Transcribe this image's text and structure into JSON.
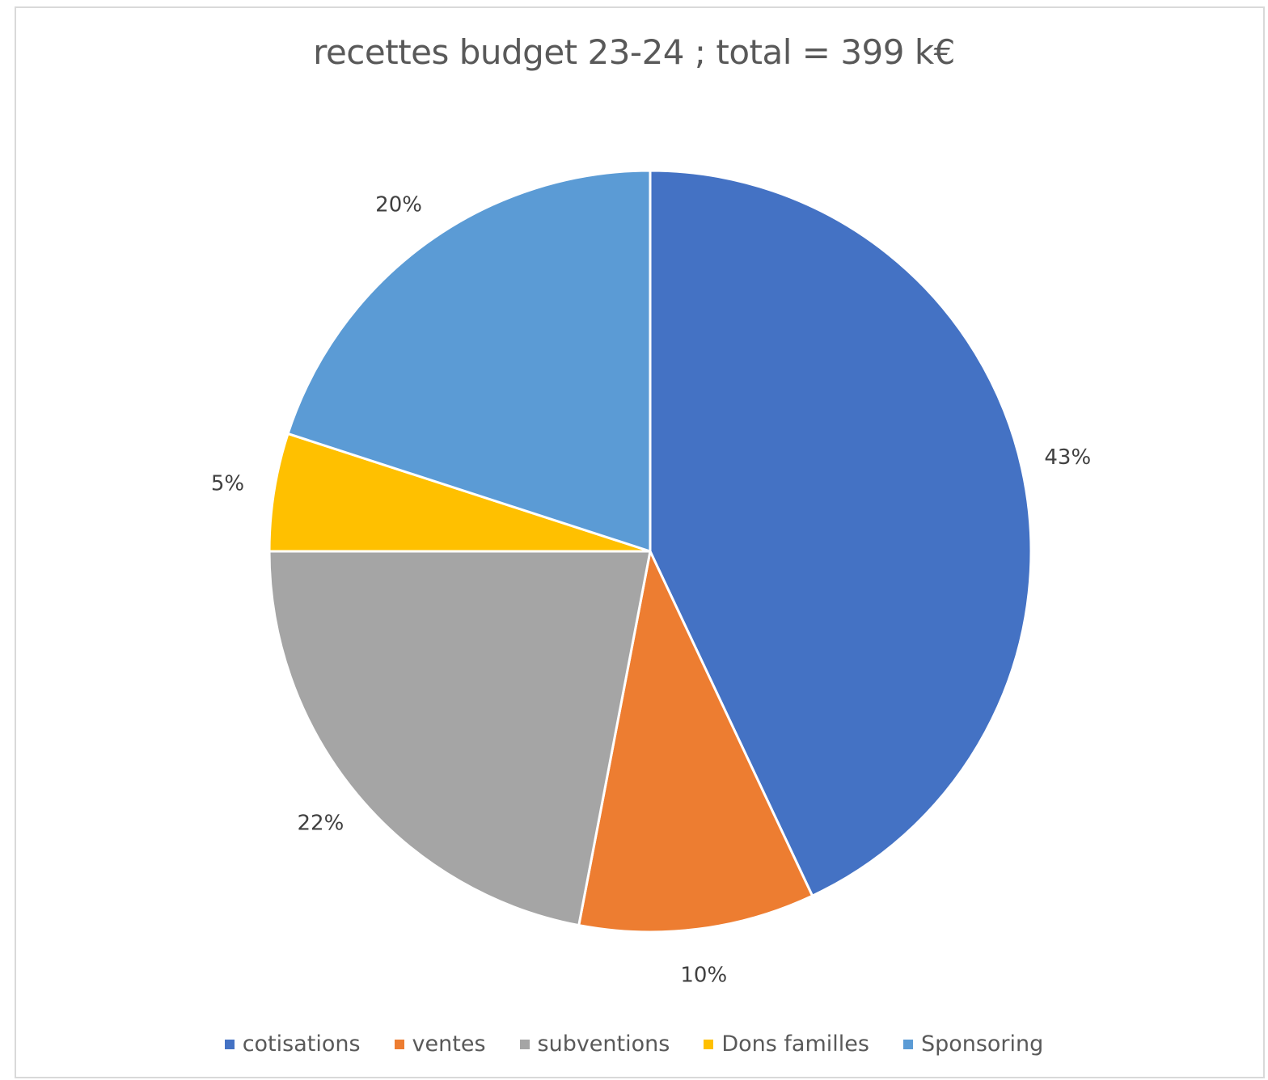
{
  "chart_data": {
    "type": "pie",
    "title": "recettes budget 23-24 ; total = 399 k€",
    "categories": [
      "cotisations",
      "ventes",
      "subventions",
      "Dons familles",
      "Sponsoring"
    ],
    "values": [
      43,
      10,
      22,
      5,
      20
    ],
    "data_labels": [
      "43%",
      "10%",
      "22%",
      "5%",
      "20%"
    ],
    "colors": [
      "#4472c4",
      "#ed7d31",
      "#a5a5a5",
      "#ffc000",
      "#5b9bd5"
    ],
    "legend_position": "bottom",
    "start_angle": "12 o'clock",
    "direction": "clockwise"
  }
}
